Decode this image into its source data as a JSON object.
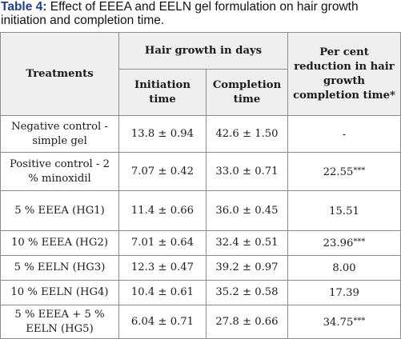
{
  "caption": {
    "label": "Table 4:",
    "text": " Effect of EEEA and EELN gel formulation on hair growth initiation and completion time."
  },
  "header": {
    "treatments": "Treatments",
    "hair_growth": "Hair growth in days",
    "initiation": "Initiation time",
    "completion": "Completion time",
    "reduction": "Per cent reduction in hair growth completion time*"
  },
  "rows": [
    {
      "treatment": "Negative control - simple gel",
      "initiation": "13.8 ± 0.94",
      "completion": "42.6 ± 1.50",
      "reduction": "-",
      "sig": ""
    },
    {
      "treatment": "Positive control - 2 % minoxidil",
      "initiation": "7.07 ± 0.42",
      "completion": "33.0 ± 0.71",
      "reduction": "22.55",
      "sig": "***"
    },
    {
      "treatment": "5 % EEEA (HG1)",
      "initiation": "11.4 ± 0.66",
      "completion": "36.0 ± 0.45",
      "reduction": "15.51",
      "sig": ""
    },
    {
      "treatment": "10 % EEEA (HG2)",
      "initiation": "7.01 ± 0.64",
      "completion": "32.4 ± 0.51",
      "reduction": "23.96",
      "sig": "***"
    },
    {
      "treatment": "5 % EELN (HG3)",
      "initiation": "12.3 ± 0.47",
      "completion": "39.2 ± 0.97",
      "reduction": "8.00",
      "sig": ""
    },
    {
      "treatment": "10 % EELN (HG4)",
      "initiation": "10.4 ± 0.61",
      "completion": "35.2 ± 0.58",
      "reduction": "17.39",
      "sig": ""
    },
    {
      "treatment": "5 % EEEA + 5 % EELN (HG5)",
      "initiation": "6.04 ± 0.71",
      "completion": "27.8 ± 0.66",
      "reduction": "34.75",
      "sig": "***"
    }
  ]
}
